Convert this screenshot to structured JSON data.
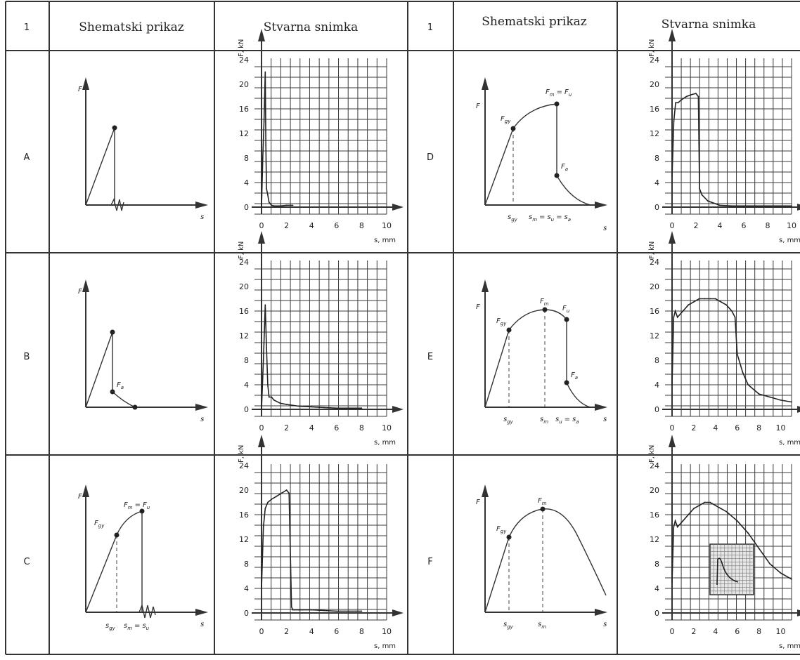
{
  "headers": {
    "num_left": "1",
    "schematic_left": "Shematski prikaz",
    "actual_left": "Stvarna snimka",
    "num_right": "1",
    "schematic_right": "Shematski prikaz",
    "actual_right": "Stvarna snimka"
  },
  "rows": [
    "A",
    "B",
    "C",
    "D",
    "E",
    "F"
  ],
  "schematic_labels": {
    "F": "F",
    "s": "s",
    "Fgy": "F",
    "Fgy_sub": "gy",
    "Fm": "F",
    "Fm_sub": "m",
    "Fu": "F",
    "Fu_sub": "u",
    "Fa": "F",
    "Fa_sub": "a",
    "eq": "=",
    "sgy": "s",
    "sgy_sub": "gy",
    "sm": "s",
    "sm_sub": "m",
    "su": "s",
    "su_sub": "u",
    "sa": "s",
    "sa_sub": "a"
  },
  "axis_text": {
    "y_unit": "F, kN",
    "x_unit": "s, mm",
    "y_ticks": [
      "24",
      "20",
      "16",
      "12",
      "8",
      "4",
      "0"
    ],
    "x_ticks": [
      "0",
      "2",
      "4",
      "6",
      "8",
      "10"
    ]
  },
  "chart_data": [
    {
      "type": "line",
      "row": "A",
      "x": [
        0,
        0.1,
        0.2,
        0.3,
        0.35,
        0.4,
        0.5,
        0.6,
        0.8,
        1,
        1.5,
        2,
        2.5
      ],
      "y": [
        0,
        8,
        14,
        22,
        10,
        3,
        2,
        0.8,
        0.3,
        0.2,
        0.2,
        0.3,
        0.3
      ],
      "xlim": [
        0,
        10
      ],
      "ylim": [
        0,
        24
      ]
    },
    {
      "type": "line",
      "row": "B",
      "x": [
        0,
        0.15,
        0.3,
        0.4,
        0.5,
        0.6,
        0.8,
        1,
        1.5,
        2,
        3,
        4,
        5,
        6,
        7,
        8
      ],
      "y": [
        0,
        8,
        17,
        10,
        4,
        2,
        2,
        1.5,
        1,
        0.8,
        0.5,
        0.4,
        0.3,
        0.2,
        0.2,
        0.2
      ],
      "xlim": [
        0,
        10
      ],
      "ylim": [
        0,
        24
      ]
    },
    {
      "type": "line",
      "row": "C",
      "x": [
        0,
        0.15,
        0.3,
        0.5,
        0.8,
        1.2,
        1.6,
        2,
        2.2,
        2.4,
        2.5,
        3,
        4,
        5,
        6,
        7,
        8
      ],
      "y": [
        4,
        14,
        17,
        18,
        18.5,
        19,
        19.5,
        20,
        19.5,
        1,
        0.5,
        0.5,
        0.5,
        0.4,
        0.3,
        0.3,
        0.3
      ],
      "xlim": [
        0,
        10
      ],
      "ylim": [
        0,
        24
      ]
    },
    {
      "type": "line",
      "row": "D",
      "x": [
        0,
        0.15,
        0.3,
        0.5,
        0.8,
        1.2,
        1.6,
        2,
        2.2,
        2.3,
        2.5,
        3,
        4,
        5,
        6,
        7,
        8,
        9,
        10
      ],
      "y": [
        5,
        14,
        17,
        17,
        17.5,
        18,
        18.3,
        18.5,
        18,
        3,
        2,
        1,
        0.3,
        0.2,
        0.2,
        0.2,
        0.2,
        0.2,
        0.2
      ],
      "xlim": [
        0,
        10
      ],
      "ylim": [
        0,
        24
      ]
    },
    {
      "type": "line",
      "row": "E",
      "x": [
        0,
        0.15,
        0.3,
        0.5,
        1,
        1.5,
        2,
        2.5,
        3,
        3.5,
        4,
        4.5,
        5,
        5.5,
        5.8,
        6,
        6.5,
        7,
        8,
        9,
        10,
        11
      ],
      "y": [
        4,
        15,
        16,
        15,
        16,
        17,
        17.5,
        18,
        18,
        18,
        18,
        17.5,
        17,
        16,
        15,
        9,
        6,
        4,
        2.5,
        2,
        1.5,
        1.2
      ],
      "xlim": [
        0,
        11
      ],
      "ylim": [
        0,
        24
      ]
    },
    {
      "type": "line",
      "row": "F",
      "x": [
        0,
        0.15,
        0.3,
        0.5,
        1,
        1.5,
        2,
        2.5,
        3,
        3.5,
        4,
        4.5,
        5,
        6,
        7,
        8,
        9,
        10,
        11
      ],
      "y": [
        5,
        14,
        15,
        14,
        15,
        16,
        17,
        17.5,
        18,
        18,
        17.5,
        17,
        16.5,
        15,
        13,
        10.5,
        8,
        6.5,
        5.5
      ],
      "xlim": [
        0,
        11
      ],
      "ylim": [
        0,
        24
      ]
    }
  ]
}
